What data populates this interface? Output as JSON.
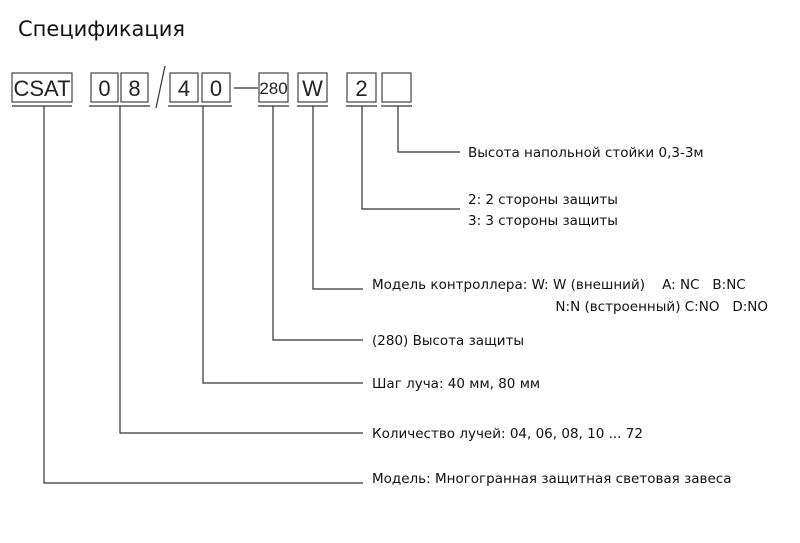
{
  "title": "Спецификация",
  "code": {
    "model": "CSAT",
    "count_d1": "0",
    "count_d2": "8",
    "pitch_d1": "4",
    "pitch_d2": "0",
    "height": "280",
    "controller": "W",
    "sides": "2",
    "stand": ""
  },
  "labels": {
    "stand": "Высота напольной стойки 0,3-3м",
    "sides_2": "2: 2 стороны защиты",
    "sides_3": "3: 3 стороны защиты",
    "controller_1": "Модель контроллера: W: W (внешний)    A: NC   B:NC",
    "controller_2": "N:N (встроенный) C:NO   D:NO",
    "height": "(280) Высота защиты",
    "pitch": "Шаг луча: 40 мм, 80 мм",
    "count": "Количество лучей: 04, 06, 08, 10 ... 72",
    "model": "Модель: Многогранная защитная световая завеса"
  }
}
